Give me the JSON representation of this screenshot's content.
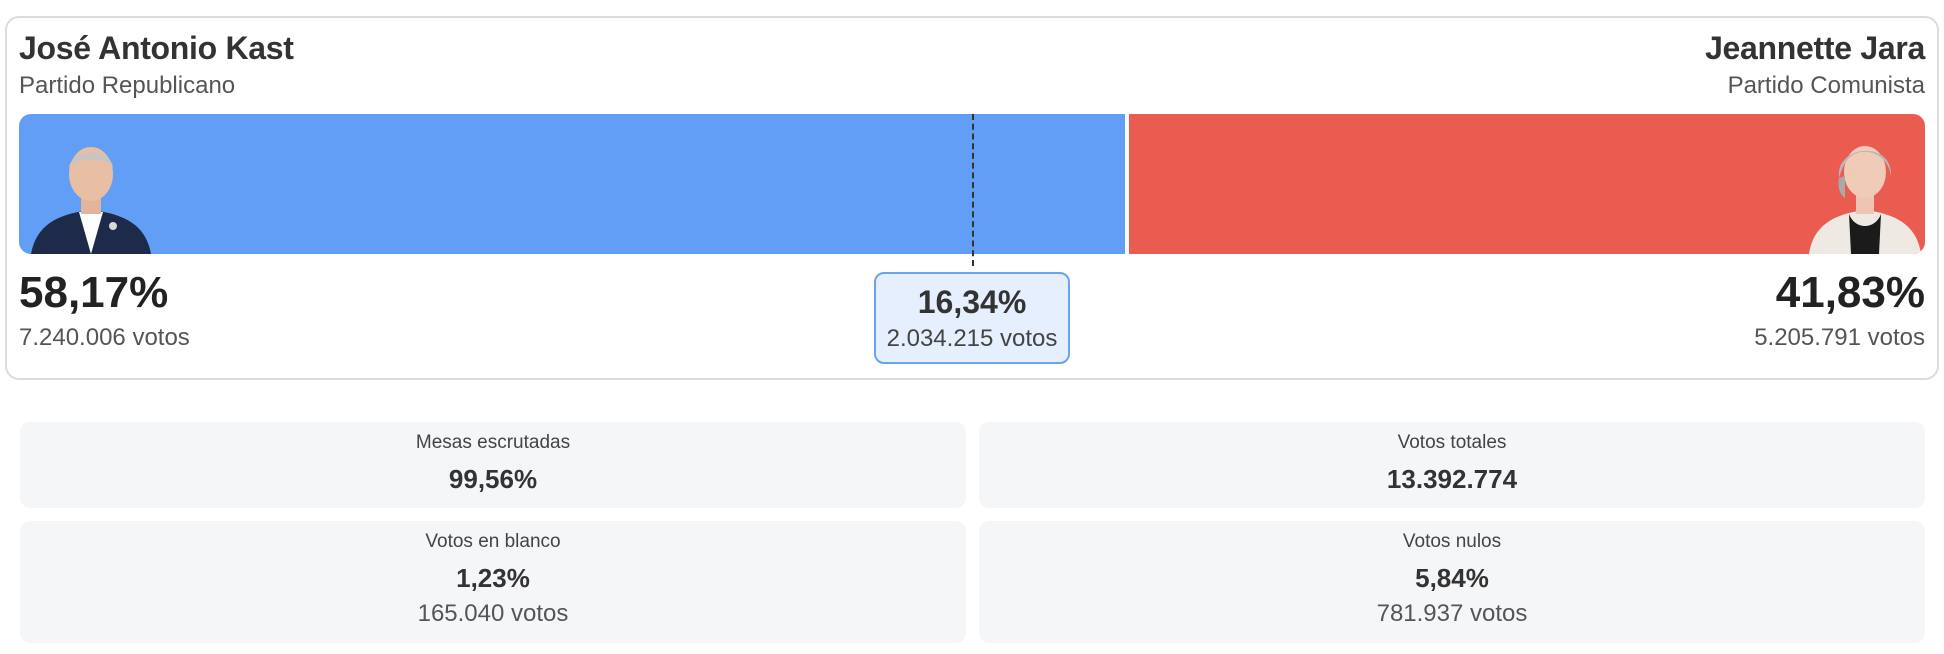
{
  "candidates": {
    "left": {
      "name": "José Antonio Kast",
      "party": "Partido Republicano",
      "percent": "58,17%",
      "percent_value": 58.17,
      "votes": "7.240.006 votos",
      "color": "#629ef6",
      "portrait_icon": "candidate-portrait"
    },
    "right": {
      "name": "Jeannette Jara",
      "party": "Partido Comunista",
      "percent": "41,83%",
      "percent_value": 41.83,
      "votes": "5.205.791 votos",
      "color": "#eb5c50",
      "portrait_icon": "candidate-portrait"
    }
  },
  "difference": {
    "percent": "16,34%",
    "votes": "2.034.215 votos"
  },
  "majority_threshold_value": 50,
  "stats": {
    "mesas": {
      "label": "Mesas escrutadas",
      "value": "99,56%"
    },
    "totales": {
      "label": "Votos totales",
      "value": "13.392.774"
    },
    "blanco": {
      "label": "Votos en blanco",
      "value": "1,23%",
      "sub": "165.040 votos"
    },
    "nulos": {
      "label": "Votos nulos",
      "value": "5,84%",
      "sub": "781.937 votos"
    }
  },
  "colors": {
    "accent_blue": "#629ef6",
    "accent_red": "#eb5c50",
    "diff_bg": "#e5effd",
    "diff_border": "#6aa3ee"
  }
}
